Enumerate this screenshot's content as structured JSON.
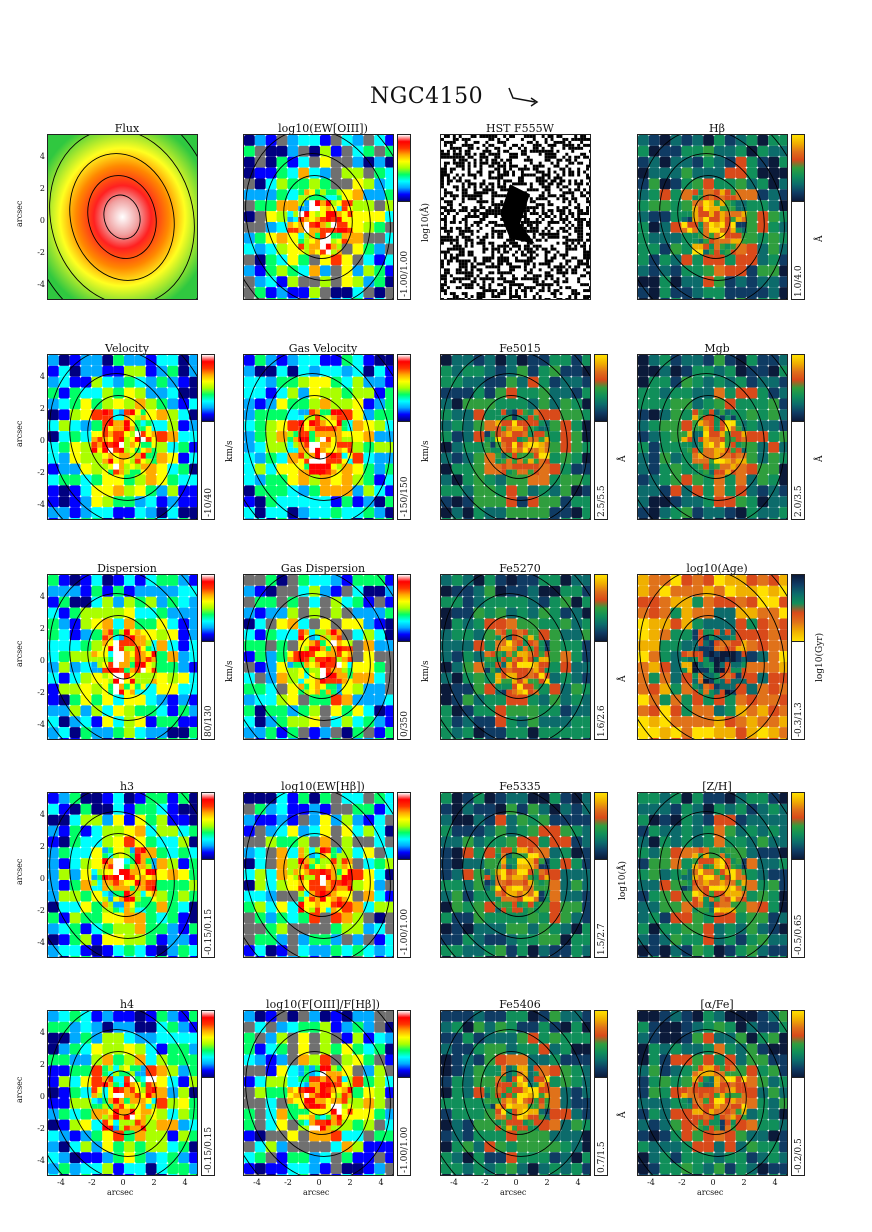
{
  "figure": {
    "title": "NGC4150",
    "axis_label": "arcsec",
    "ticks": [
      "4",
      "2",
      "0",
      "-2",
      "-4"
    ],
    "xticks": [
      "-4",
      "-2",
      "0",
      "2",
      "4"
    ]
  },
  "panels": [
    {
      "title": "Flux",
      "cmap": "flux",
      "cbar": "",
      "unit": ""
    },
    {
      "title": "log10(EW[OIII])",
      "cmap": "rainbow",
      "cbar": "-1.00/1.00",
      "unit": "log10(Å)"
    },
    {
      "title": "HST F555W",
      "cmap": "hst",
      "cbar": "",
      "unit": ""
    },
    {
      "title": "Hβ",
      "cmap": "idx",
      "cbar": "1.0/4.0",
      "unit": "Å"
    },
    {
      "title": "Velocity",
      "cmap": "rainbow",
      "cbar": "-10/40",
      "unit": "km/s"
    },
    {
      "title": "Gas Velocity",
      "cmap": "rainbow",
      "cbar": "-150/150",
      "unit": "km/s"
    },
    {
      "title": "Fe5015",
      "cmap": "idx",
      "cbar": "2.5/5.5",
      "unit": "Å"
    },
    {
      "title": "Mgb",
      "cmap": "idx",
      "cbar": "2.0/3.5",
      "unit": "Å"
    },
    {
      "title": "Dispersion",
      "cmap": "rainbow",
      "cbar": "80/130",
      "unit": "km/s"
    },
    {
      "title": "Gas Dispersion",
      "cmap": "rainbow",
      "cbar": "0/350",
      "unit": "km/s"
    },
    {
      "title": "Fe5270",
      "cmap": "idx",
      "cbar": "1.6/2.6",
      "unit": "Å"
    },
    {
      "title": "log10(Age)",
      "cmap": "age",
      "cbar": "-0.3/1.3",
      "unit": "log10(Gyr)"
    },
    {
      "title": "h3",
      "cmap": "rainbow",
      "cbar": "-0.15/0.15",
      "unit": ""
    },
    {
      "title": "log10(EW[Hβ])",
      "cmap": "rainbow",
      "cbar": "-1.00/1.00",
      "unit": ""
    },
    {
      "title": "Fe5335",
      "cmap": "idx",
      "cbar": "1.5/2.7",
      "unit": "log10(Å)"
    },
    {
      "title": "[Z/H]",
      "cmap": "idx",
      "cbar": "-0.5/0.65",
      "unit": ""
    },
    {
      "title": "h4",
      "cmap": "rainbow",
      "cbar": "-0.15/0.15",
      "unit": ""
    },
    {
      "title": "log10(F[OIII]/F[Hβ])",
      "cmap": "rainbow",
      "cbar": "-1.00/1.00",
      "unit": ""
    },
    {
      "title": "Fe5406",
      "cmap": "idx",
      "cbar": "0.7/1.5",
      "unit": "Å"
    },
    {
      "title": "[α/Fe]",
      "cmap": "idx",
      "cbar": "-0.2/0.5",
      "unit": ""
    }
  ],
  "colors": {
    "rainbow": [
      "#000080",
      "#0000ff",
      "#00aaff",
      "#00ffff",
      "#00ff66",
      "#aaff00",
      "#ffff00",
      "#ffaa00",
      "#ff3300",
      "#ff0000",
      "#ffffff"
    ],
    "idx": [
      "#0b1a3a",
      "#0f3b63",
      "#0c6b6b",
      "#108f5a",
      "#2f9e3e",
      "#d94a1a",
      "#e0721a",
      "#f0b000",
      "#ffe000"
    ],
    "age": [
      "#ffe000",
      "#f0b000",
      "#e0721a",
      "#d94a1a",
      "#108f5a",
      "#0c6b6b",
      "#0f3b63",
      "#0b1a3a"
    ],
    "gas_mask": "#707070"
  }
}
